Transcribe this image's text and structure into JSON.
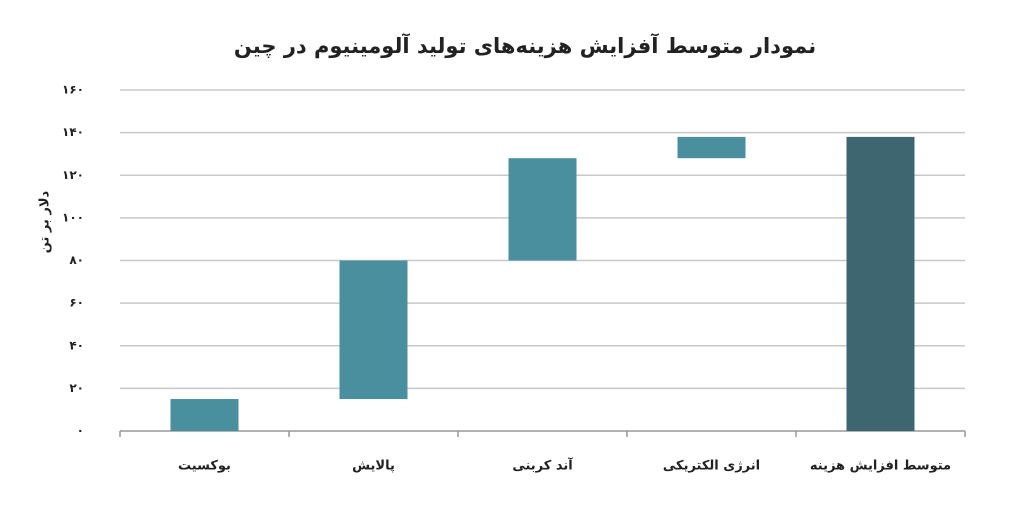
{
  "chart_data": {
    "type": "waterfall",
    "title": "نمودار متوسط آفزایش هزینه‌های تولید آلومینیوم در چین",
    "y_label": "دلار بر تن",
    "categories": [
      "بوکسیت",
      "پالایش",
      "آند کربنی",
      "انرژی الکتریکی",
      "متوسط افزایش هزینه"
    ],
    "values": [
      15,
      65,
      48,
      10,
      138
    ],
    "is_total": [
      false,
      false,
      false,
      false,
      true
    ],
    "color": "#4a8f9e",
    "total_color": "#3d6670",
    "ylim": [
      0,
      160
    ],
    "yticks": [
      {
        "value": 0,
        "label": "۰"
      },
      {
        "value": 20,
        "label": "۲۰"
      },
      {
        "value": 40,
        "label": "۴۰"
      },
      {
        "value": 60,
        "label": "۶۰"
      },
      {
        "value": 80,
        "label": "۸۰"
      },
      {
        "value": 100,
        "label": "۱۰۰"
      },
      {
        "value": 120,
        "label": "۱۲۰"
      },
      {
        "value": 140,
        "label": "۱۴۰"
      },
      {
        "value": 160,
        "label": "۱۶۰"
      }
    ],
    "grid": true
  }
}
